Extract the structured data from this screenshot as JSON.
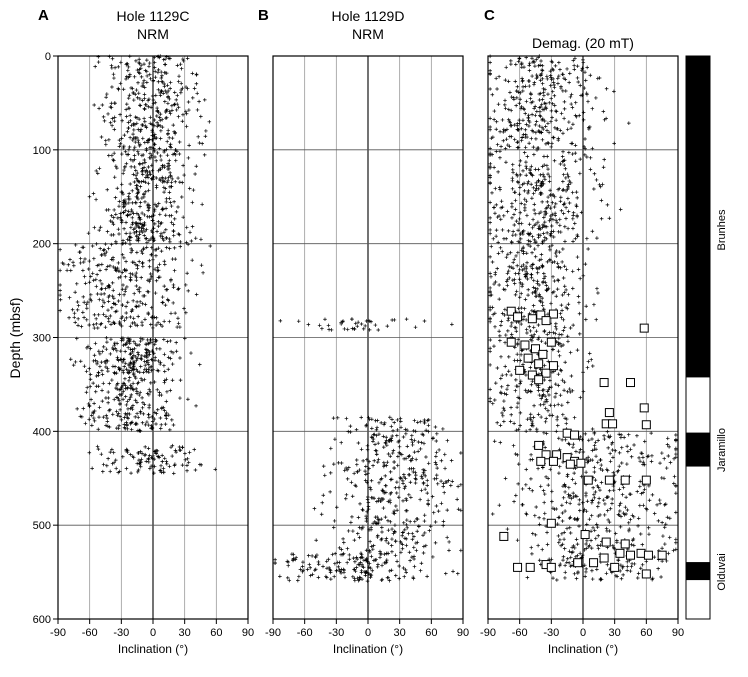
{
  "chart_data": [
    {
      "type": "scatter",
      "panel_letter": "A",
      "title_line1": "Hole 1129C",
      "title_line2": "NRM",
      "xlabel": "Inclination (°)",
      "ylabel": "Depth (mbsf)",
      "xlim": [
        -90,
        90
      ],
      "ylim": [
        600,
        0
      ],
      "x_ticks": [
        "-90",
        "-60",
        "-30",
        "0",
        "30",
        "60",
        "90"
      ],
      "y_ticks": [
        "0",
        "100",
        "200",
        "300",
        "400",
        "500",
        "600"
      ],
      "grid": true,
      "marker": "plus",
      "clusters": [
        {
          "depth": [
            0,
            200
          ],
          "center": -5,
          "spread": 22,
          "count": 700
        },
        {
          "depth": [
            200,
            290
          ],
          "center": -25,
          "spread": 32,
          "count": 320
        },
        {
          "depth": [
            300,
            400
          ],
          "center": -20,
          "spread": 22,
          "count": 420
        },
        {
          "depth": [
            415,
            445
          ],
          "center": -10,
          "spread": 28,
          "count": 110
        }
      ]
    },
    {
      "type": "scatter",
      "panel_letter": "B",
      "title_line1": "Hole 1129D",
      "title_line2": "NRM",
      "xlabel": "Inclination (°)",
      "xlim": [
        -90,
        90
      ],
      "ylim": [
        600,
        0
      ],
      "x_ticks": [
        "-90",
        "-60",
        "-30",
        "0",
        "30",
        "60",
        "90"
      ],
      "grid": true,
      "marker": "plus",
      "clusters": [
        {
          "depth": [
            280,
            292
          ],
          "center": -5,
          "spread": 30,
          "count": 40
        },
        {
          "depth": [
            385,
            530
          ],
          "center": 25,
          "spread": 30,
          "count": 430
        },
        {
          "depth": [
            530,
            560
          ],
          "center": -15,
          "spread": 35,
          "count": 170
        }
      ]
    },
    {
      "type": "scatter",
      "panel_letter": "C",
      "title_line1": "Demag. (20 mT)",
      "xlabel": "Inclination (°)",
      "xlim": [
        -90,
        90
      ],
      "ylim": [
        600,
        0
      ],
      "x_ticks": [
        "-90",
        "-60",
        "-30",
        "0",
        "30",
        "60",
        "90"
      ],
      "grid": true,
      "marker": "plus",
      "clusters": [
        {
          "depth": [
            0,
            200
          ],
          "center": -40,
          "spread": 28,
          "count": 650
        },
        {
          "depth": [
            200,
            400
          ],
          "center": -45,
          "spread": 24,
          "count": 520
        },
        {
          "depth": [
            400,
            560
          ],
          "center": 15,
          "spread": 40,
          "count": 520
        }
      ],
      "open_squares": [
        {
          "x": -68,
          "y": 272
        },
        {
          "x": -62,
          "y": 278
        },
        {
          "x": -48,
          "y": 280
        },
        {
          "x": -40,
          "y": 276
        },
        {
          "x": -28,
          "y": 275
        },
        {
          "x": -35,
          "y": 282
        },
        {
          "x": 58,
          "y": 290
        },
        {
          "x": -68,
          "y": 305
        },
        {
          "x": -55,
          "y": 308
        },
        {
          "x": -45,
          "y": 312
        },
        {
          "x": -30,
          "y": 305
        },
        {
          "x": -38,
          "y": 318
        },
        {
          "x": -52,
          "y": 322
        },
        {
          "x": -42,
          "y": 328
        },
        {
          "x": -60,
          "y": 335
        },
        {
          "x": -48,
          "y": 340
        },
        {
          "x": -35,
          "y": 338
        },
        {
          "x": -42,
          "y": 345
        },
        {
          "x": -28,
          "y": 330
        },
        {
          "x": 20,
          "y": 348
        },
        {
          "x": 45,
          "y": 348
        },
        {
          "x": 25,
          "y": 380
        },
        {
          "x": 58,
          "y": 375
        },
        {
          "x": 22,
          "y": 392
        },
        {
          "x": 60,
          "y": 393
        },
        {
          "x": 28,
          "y": 392
        },
        {
          "x": -15,
          "y": 402
        },
        {
          "x": -8,
          "y": 404
        },
        {
          "x": -42,
          "y": 415
        },
        {
          "x": -35,
          "y": 425
        },
        {
          "x": -25,
          "y": 425
        },
        {
          "x": -15,
          "y": 428
        },
        {
          "x": -40,
          "y": 432
        },
        {
          "x": -28,
          "y": 432
        },
        {
          "x": -8,
          "y": 432
        },
        {
          "x": -2,
          "y": 434
        },
        {
          "x": -12,
          "y": 435
        },
        {
          "x": 5,
          "y": 452
        },
        {
          "x": 25,
          "y": 452
        },
        {
          "x": 40,
          "y": 452
        },
        {
          "x": 60,
          "y": 452
        },
        {
          "x": -30,
          "y": 498
        },
        {
          "x": -75,
          "y": 512
        },
        {
          "x": 2,
          "y": 510
        },
        {
          "x": 22,
          "y": 518
        },
        {
          "x": 40,
          "y": 520
        },
        {
          "x": 35,
          "y": 530
        },
        {
          "x": 45,
          "y": 532
        },
        {
          "x": 55,
          "y": 530
        },
        {
          "x": 62,
          "y": 532
        },
        {
          "x": 75,
          "y": 532
        },
        {
          "x": 20,
          "y": 535
        },
        {
          "x": 10,
          "y": 540
        },
        {
          "x": -5,
          "y": 540
        },
        {
          "x": -35,
          "y": 542
        },
        {
          "x": -30,
          "y": 545
        },
        {
          "x": -50,
          "y": 545
        },
        {
          "x": -62,
          "y": 545
        },
        {
          "x": 30,
          "y": 545
        },
        {
          "x": 60,
          "y": 552
        }
      ]
    }
  ],
  "polarity_column": {
    "intervals": [
      {
        "top": 0,
        "bottom": 342,
        "polarity": "normal"
      },
      {
        "top": 342,
        "bottom": 402,
        "polarity": "reversed"
      },
      {
        "top": 402,
        "bottom": 437,
        "polarity": "normal"
      },
      {
        "top": 437,
        "bottom": 540,
        "polarity": "reversed"
      },
      {
        "top": 540,
        "bottom": 558,
        "polarity": "normal"
      },
      {
        "top": 558,
        "bottom": 600,
        "polarity": "reversed"
      }
    ],
    "labels": [
      "Brunhes",
      "Jaramillo",
      "Olduvai"
    ]
  },
  "colors": {
    "normal": "#000000",
    "reversed": "#ffffff",
    "grid": "#9a9a9a",
    "marker": "#000000"
  }
}
